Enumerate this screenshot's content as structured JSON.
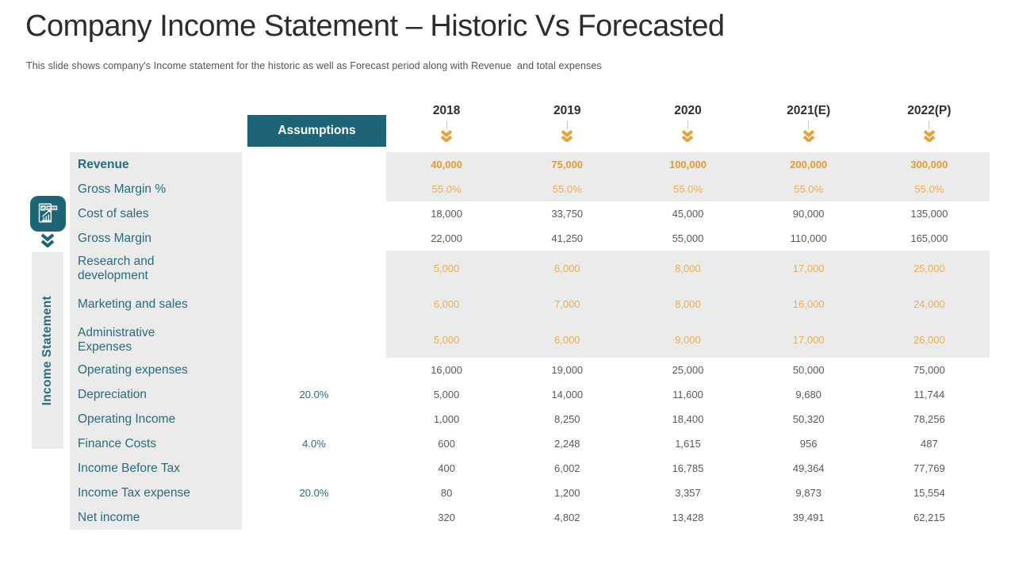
{
  "header": {
    "title": "Company Income Statement – Historic Vs Forecasted",
    "subtitle": "This slide shows company's Income statement for the historic as well as Forecast period along with Revenue  and total expenses"
  },
  "sidebar": {
    "label": "Income Statement",
    "icon": "income-statement-icon"
  },
  "table": {
    "assumptions_label": "Assumptions",
    "years": [
      "2018",
      "2019",
      "2020",
      "2021(E)",
      "2022(P)"
    ],
    "year_marker_icon": "double-chevron-down-icon",
    "rows": [
      {
        "label": "Revenue",
        "bold": true,
        "band": "gray",
        "valueStyle": "orange-bold",
        "assumption": "",
        "values": [
          "40,000",
          "75,000",
          "100,000",
          "200,000",
          "300,000"
        ]
      },
      {
        "label": "Gross Margin %",
        "band": "gray",
        "valueStyle": "orange",
        "assumption": "",
        "values": [
          "55.0%",
          "55.0%",
          "55.0%",
          "55.0%",
          "55.0%"
        ]
      },
      {
        "label": "Cost of sales",
        "valueStyle": "plain",
        "assumption": "",
        "values": [
          "18,000",
          "33,750",
          "45,000",
          "90,000",
          "135,000"
        ]
      },
      {
        "label": "Gross Margin",
        "valueStyle": "plain",
        "assumption": "",
        "values": [
          "22,000",
          "41,250",
          "55,000",
          "110,000",
          "165,000"
        ]
      },
      {
        "label": "Research and\ndevelopment",
        "band": "gray",
        "tall": true,
        "valueStyle": "orange",
        "assumption": "",
        "values": [
          "5,000",
          "6,000",
          "8,000",
          "17,000",
          "25,000"
        ]
      },
      {
        "label": "Marketing and sales",
        "band": "gray",
        "tall": true,
        "valueStyle": "orange",
        "assumption": "",
        "values": [
          "6,000",
          "7,000",
          "8,000",
          "16,000",
          "24,000"
        ]
      },
      {
        "label": "Administrative\nExpenses",
        "band": "gray",
        "tall": true,
        "valueStyle": "orange",
        "assumption": "",
        "values": [
          "5,000",
          "6,000",
          "9,000",
          "17,000",
          "26,000"
        ]
      },
      {
        "label": "Operating expenses",
        "valueStyle": "plain",
        "assumption": "",
        "values": [
          "16,000",
          "19,000",
          "25,000",
          "50,000",
          "75,000"
        ]
      },
      {
        "label": "Depreciation",
        "valueStyle": "plain",
        "assumption": "20.0%",
        "values": [
          "5,000",
          "14,000",
          "11,600",
          "9,680",
          "11,744"
        ]
      },
      {
        "label": "Operating Income",
        "valueStyle": "plain",
        "assumption": "",
        "values": [
          "1,000",
          "8,250",
          "18,400",
          "50,320",
          "78,256"
        ]
      },
      {
        "label": "Finance Costs",
        "valueStyle": "plain",
        "assumption": "4.0%",
        "values": [
          "600",
          "2,248",
          "1,615",
          "956",
          "487"
        ]
      },
      {
        "label": "Income Before Tax",
        "valueStyle": "plain",
        "assumption": "",
        "values": [
          "400",
          "6,002",
          "16,785",
          "49,364",
          "77,769"
        ]
      },
      {
        "label": "Income Tax expense",
        "valueStyle": "plain",
        "assumption": "20.0%",
        "values": [
          "80",
          "1,200",
          "3,357",
          "9,873",
          "15,554"
        ]
      },
      {
        "label": "Net income",
        "valueStyle": "plain",
        "assumption": "",
        "values": [
          "320",
          "4,802",
          "13,428",
          "39,491",
          "62,215"
        ]
      }
    ]
  },
  "colors": {
    "teal": "#1E6477",
    "label_teal": "#276C7E",
    "band_gray": "#EBEBEB",
    "orange_bold": "#E49A33",
    "orange": "#EDAD52",
    "value_gray": "#58595B",
    "chevron_orange": "#E8A33D"
  }
}
